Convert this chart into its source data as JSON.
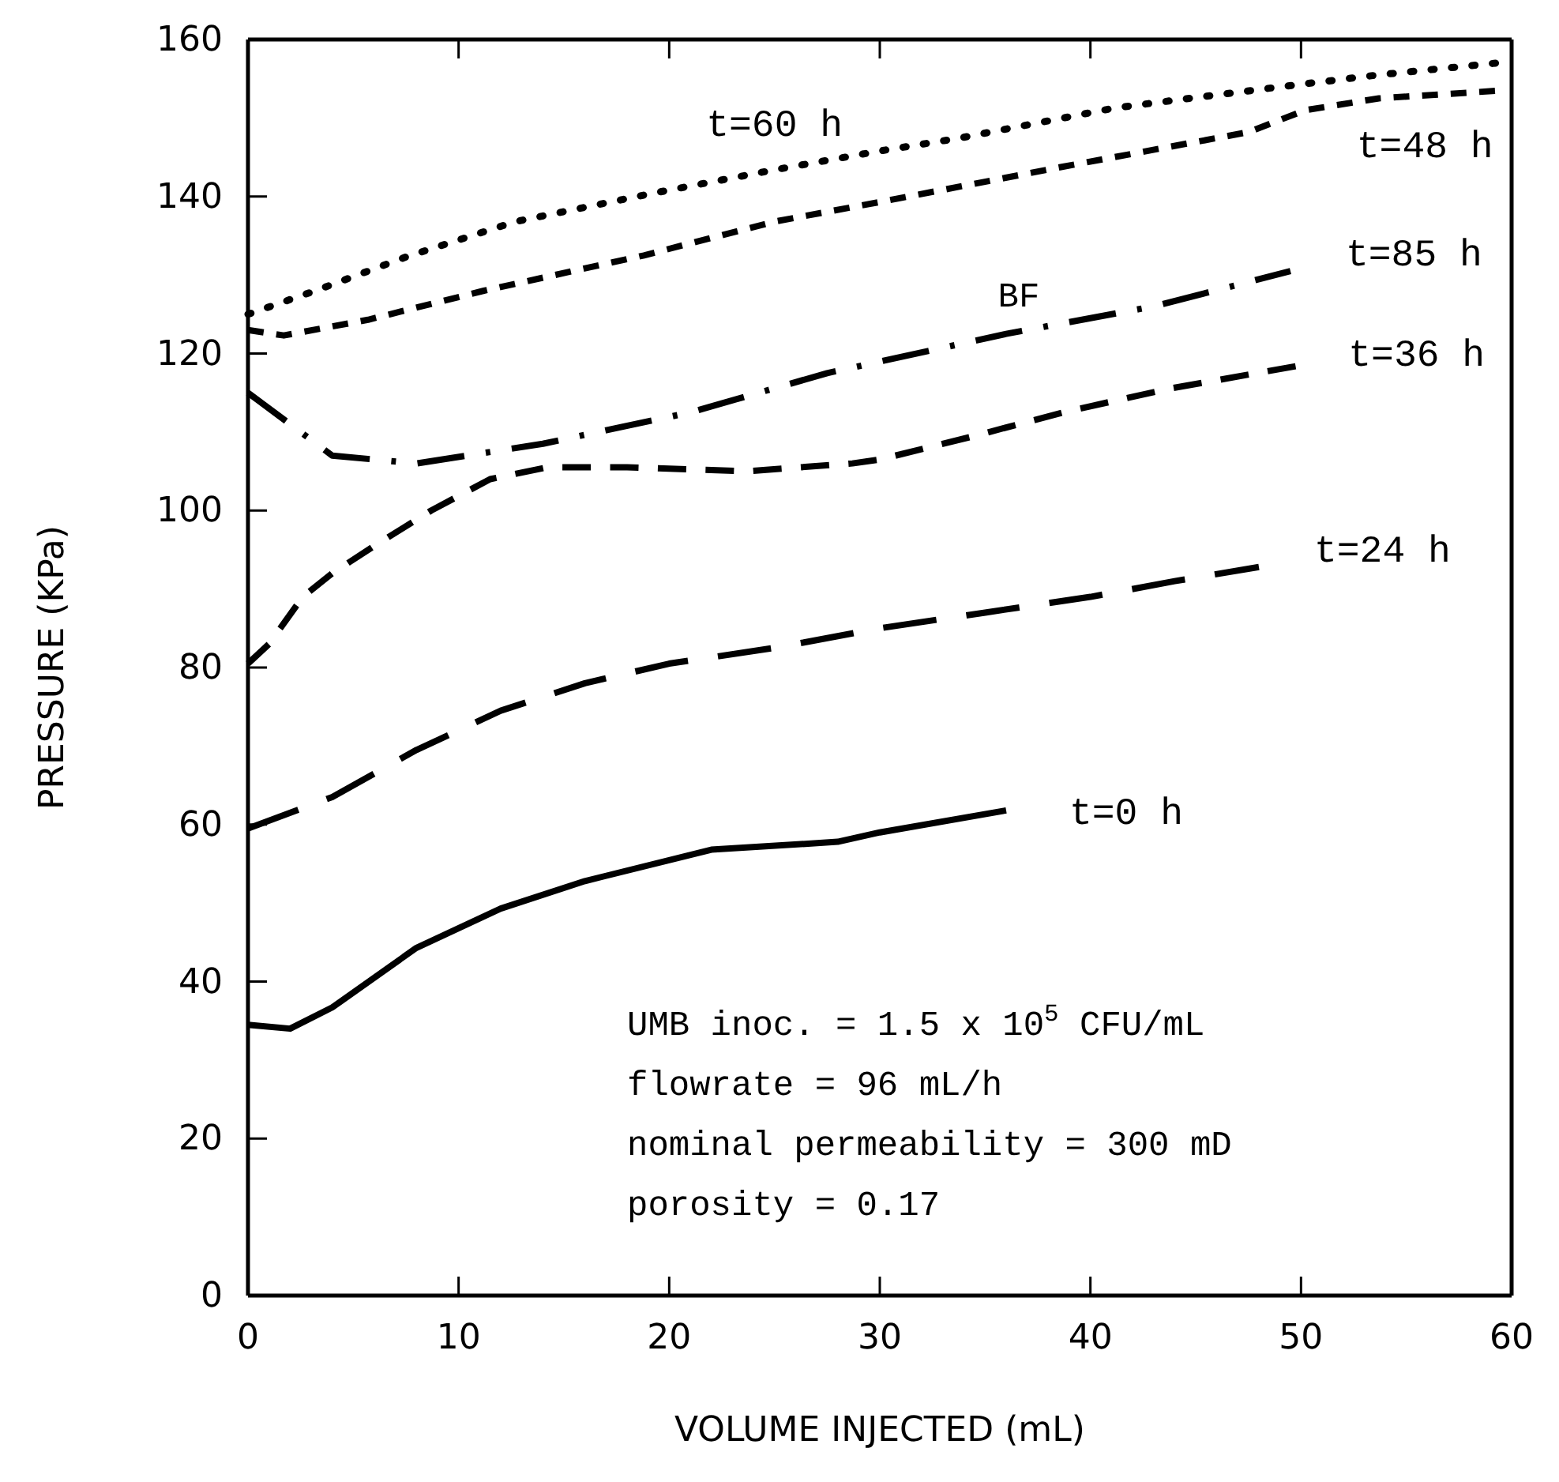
{
  "chart_data": {
    "type": "line",
    "xlabel": "VOLUME INJECTED (mL)",
    "ylabel": "PRESSURE (KPa)",
    "xlim": [
      0,
      60
    ],
    "xticks": [
      0,
      10,
      20,
      30,
      40,
      50,
      60
    ],
    "ylim": [
      0,
      160
    ],
    "yticks": [
      0,
      20,
      40,
      60,
      80,
      100,
      120,
      140,
      160
    ],
    "grid": false,
    "series": [
      {
        "name": "t=0 h",
        "color": "#000000",
        "line_style": "solid",
        "x": [
          0,
          2,
          4,
          8,
          12,
          16,
          22,
          28,
          30,
          36
        ],
        "values": [
          34.5,
          34,
          36.7,
          44.3,
          49.3,
          52.8,
          56.8,
          57.8,
          59,
          61.8
        ]
      },
      {
        "name": "t=24 h",
        "color": "#000000",
        "line_style": "longdash",
        "x": [
          0,
          4,
          8,
          12,
          16,
          20,
          25,
          30,
          35,
          40,
          44,
          48
        ],
        "values": [
          59.5,
          63.5,
          69.5,
          74.5,
          78,
          80.5,
          82.5,
          85,
          87,
          89,
          91,
          92.8
        ]
      },
      {
        "name": "t=36 h",
        "color": "#000000",
        "line_style": "dashed",
        "x": [
          0,
          1,
          2.6,
          4,
          6,
          8.7,
          11.5,
          14.2,
          18,
          23.7,
          28.7,
          30,
          34.5,
          38.7,
          43.7,
          50
        ],
        "values": [
          80.5,
          83,
          89,
          92,
          95.5,
          100,
          104,
          105.5,
          105.5,
          105,
          106,
          106.5,
          109.5,
          112.5,
          115.5,
          118.5
        ]
      },
      {
        "name": "t=85 h",
        "color": "#000000",
        "line_style": "dashdot",
        "x": [
          0,
          4,
          8,
          14,
          21,
          27.5,
          36,
          43,
          49.5
        ],
        "values": [
          115,
          107,
          106,
          108.5,
          112.5,
          117.5,
          122.5,
          126,
          130.5
        ]
      },
      {
        "name": "t=48 h",
        "color": "#000000",
        "line_style": "shortdash",
        "x": [
          0,
          1.7,
          5.7,
          11.2,
          18.8,
          25,
          30,
          38.7,
          47.5,
          50.2,
          53.7,
          59.5
        ],
        "values": [
          123,
          122.3,
          124.3,
          128,
          132.5,
          136.8,
          139.3,
          143.8,
          148.2,
          151,
          152.5,
          153.5
        ]
      },
      {
        "name": "t=60 h",
        "color": "#000000",
        "line_style": "dotted",
        "x": [
          0,
          3.2,
          7.5,
          12.7,
          19.2,
          25,
          30,
          33.7,
          41.2,
          48.8,
          53.7,
          59.3
        ],
        "values": [
          125,
          128,
          132.3,
          136.8,
          140.4,
          143.4,
          145.8,
          147.4,
          151.3,
          153.9,
          155.5,
          157
        ]
      }
    ],
    "annotations": [
      "BF",
      "UMB inoc. = 1.5 x 10$^{5}$ CFU/mL",
      "flowrate = 96 mL/h",
      "nominal permeability = 300 mD",
      "porosity = 0.17"
    ]
  }
}
